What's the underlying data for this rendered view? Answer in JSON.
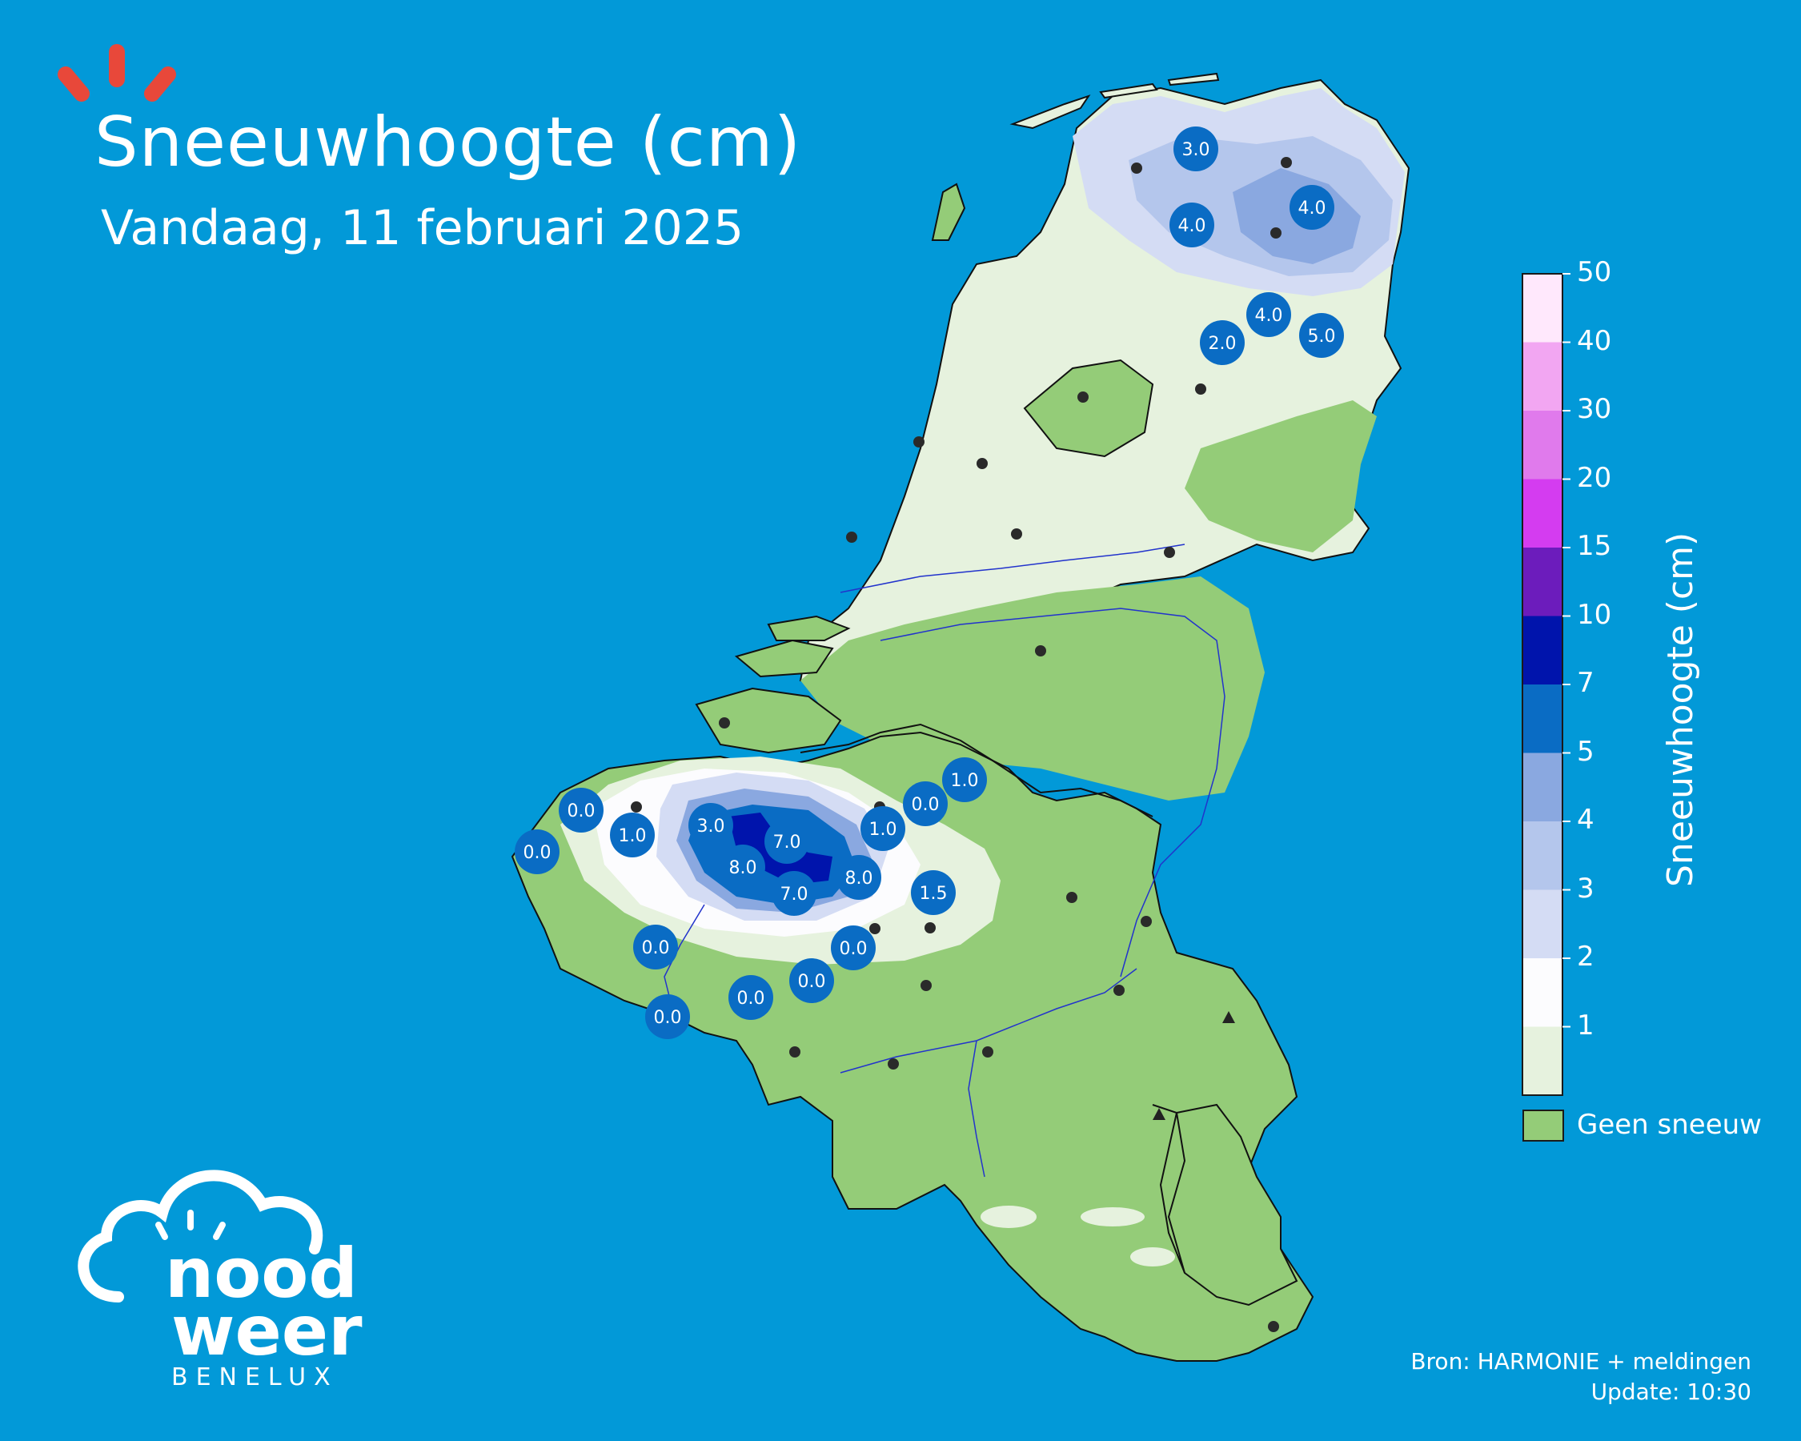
{
  "header": {
    "title": "Sneeuwhoogte (cm)",
    "subtitle": "Vandaag, 11 februari 2025"
  },
  "colorbar": {
    "title": "Sneeuwhoogte (cm)",
    "ticks": [
      "50",
      "40",
      "30",
      "20",
      "15",
      "10",
      "7",
      "5",
      "4",
      "3",
      "2",
      "1"
    ],
    "colors": [
      "#ffe8fc",
      "#f2a6f2",
      "#e07aec",
      "#d43cf0",
      "#6c1cbc",
      "#0014ac",
      "#0a6cc4",
      "#8aa8e0",
      "#b4c6ec",
      "#d4dcf4",
      "#fcfcfe",
      "#e6f2de"
    ],
    "no_snow_color": "#94cc78",
    "no_snow_label": "Geen sneeuw"
  },
  "stations": [
    {
      "value": "3.0"
    },
    {
      "value": "4.0"
    },
    {
      "value": "4.0"
    },
    {
      "value": "4.0"
    },
    {
      "value": "2.0"
    },
    {
      "value": "5.0"
    },
    {
      "value": "0.0"
    },
    {
      "value": "0.0"
    },
    {
      "value": "1.0"
    },
    {
      "value": "3.0"
    },
    {
      "value": "7.0"
    },
    {
      "value": "8.0"
    },
    {
      "value": "7.0"
    },
    {
      "value": "8.0"
    },
    {
      "value": "1.0"
    },
    {
      "value": "0.0"
    },
    {
      "value": "1.0"
    },
    {
      "value": "1.5"
    },
    {
      "value": "0.0"
    },
    {
      "value": "0.0"
    },
    {
      "value": "0.0"
    },
    {
      "value": "0.0"
    },
    {
      "value": "0.0"
    }
  ],
  "footer": {
    "source": "Bron: HARMONIE + meldingen",
    "update": "Update: 10:30"
  },
  "logo": {
    "line1": "nood",
    "line2": "weer",
    "line3": "BENELUX"
  },
  "colors": {
    "sea": "#0299d8",
    "badge": "#0a6cc4",
    "rays": "#e8483a"
  }
}
